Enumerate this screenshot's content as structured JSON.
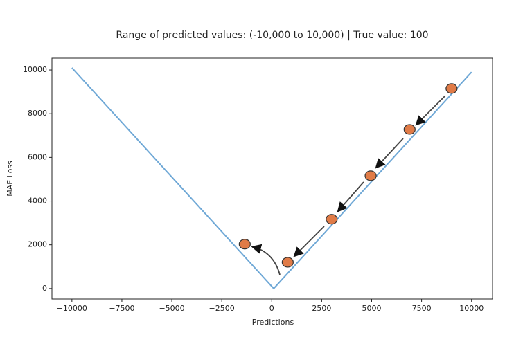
{
  "chart_data": {
    "type": "line",
    "title": "Range of predicted values: (-10,000 to 10,000) | True value: 100",
    "xlabel": "Predictions",
    "ylabel": "MAE Loss",
    "series": [
      {
        "mode": "line",
        "color": "#6fa8d6",
        "x": [
          -10000,
          100,
          10000
        ],
        "values": [
          10100,
          0,
          9900
        ]
      },
      {
        "mode": "markers",
        "color": "#e07b47",
        "x": [
          9000,
          6900,
          4950,
          3000,
          800,
          -1350
        ],
        "values": [
          9150,
          7280,
          5160,
          3170,
          1200,
          2030
        ]
      }
    ],
    "xlim": [
      -11000,
      11050
    ],
    "ylim": [
      -480,
      10540
    ],
    "xticks": [
      {
        "value": -10000,
        "label": "−10000"
      },
      {
        "value": -7500,
        "label": "−7500"
      },
      {
        "value": -5000,
        "label": "−5000"
      },
      {
        "value": -2500,
        "label": "−2500"
      },
      0,
      2500,
      5000,
      7500,
      10000
    ],
    "yticks": [
      0,
      2000,
      4000,
      6000,
      8000,
      10000
    ]
  }
}
